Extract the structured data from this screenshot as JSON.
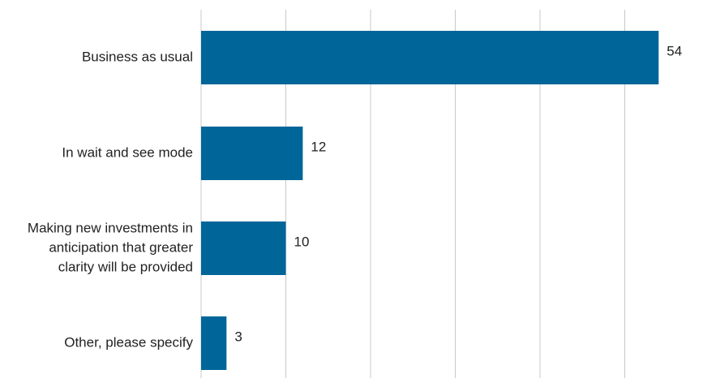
{
  "chart_data": {
    "type": "bar",
    "orientation": "horizontal",
    "categories": [
      "Business as usual",
      "In wait and see mode",
      "Making new investments in anticipation that greater clarity will be provided",
      "Other, please specify"
    ],
    "category_lines": [
      [
        "Business as usual"
      ],
      [
        "In wait and see mode"
      ],
      [
        "Making new investments in",
        "anticipation that greater",
        "clarity will be provided"
      ],
      [
        "Other, please specify"
      ]
    ],
    "values": [
      54,
      12,
      10,
      3
    ],
    "value_labels": [
      "54",
      "12",
      "10",
      "3"
    ],
    "xlim": [
      0,
      60
    ],
    "grid": true,
    "title": "",
    "xlabel": "",
    "ylabel": "",
    "colors": {
      "bar": "#006699",
      "grid": "#c8c8c8",
      "text": "#222222"
    }
  }
}
